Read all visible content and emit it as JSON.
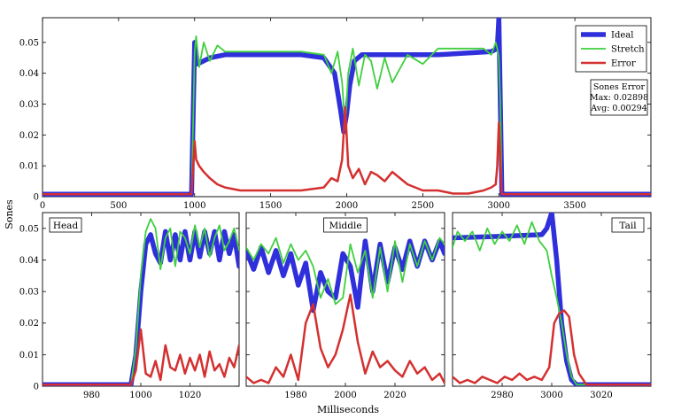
{
  "figure": {
    "ylabel": "Sones",
    "xlabel": "Milliseconds"
  },
  "colors": {
    "ideal": "#2f2fdc",
    "stretch": "#3fcf3f",
    "error": "#d43030"
  },
  "chart_data": [
    {
      "id": "overview",
      "type": "line",
      "xlim": [
        0,
        4000
      ],
      "ylim": [
        0,
        0.058
      ],
      "x_ticks": [
        0,
        500,
        1000,
        1500,
        2000,
        2500,
        3000,
        3500
      ],
      "y_ticks": [
        0,
        0.01,
        0.02,
        0.03,
        0.04,
        0.05
      ],
      "x_tick_labels": [
        "0",
        "500",
        "1000",
        "1500",
        "2000",
        "2500",
        "3000",
        "3500"
      ],
      "y_tick_labels": [
        "0",
        "0.01",
        "0.02",
        "0.03",
        "0.04",
        "0.05"
      ],
      "legend": {
        "position": "top-right",
        "items": [
          "Ideal",
          "Stretch",
          "Error"
        ]
      },
      "annotation": [
        "Sones Error",
        "Max: 0.02898",
        "Avg: 0.00294"
      ],
      "series": [
        {
          "name": "Ideal",
          "x": [
            0,
            980,
            1000,
            1020,
            1100,
            1200,
            1300,
            1500,
            1700,
            1850,
            1920,
            1960,
            1980,
            2000,
            2020,
            2050,
            2100,
            2300,
            2600,
            2950,
            2990,
            3000,
            3010,
            3020,
            3040,
            4000
          ],
          "y": [
            0.0008,
            0.0008,
            0.05,
            0.043,
            0.045,
            0.046,
            0.046,
            0.046,
            0.046,
            0.045,
            0.04,
            0.028,
            0.021,
            0.027,
            0.036,
            0.044,
            0.046,
            0.046,
            0.046,
            0.047,
            0.048,
            0.058,
            0.03,
            0.0008,
            0.0008,
            0.0008
          ]
        },
        {
          "name": "Stretch",
          "x": [
            0,
            980,
            1000,
            1010,
            1030,
            1060,
            1100,
            1150,
            1200,
            1300,
            1500,
            1700,
            1850,
            1900,
            1940,
            1970,
            1990,
            2010,
            2040,
            2080,
            2120,
            2160,
            2200,
            2250,
            2300,
            2400,
            2500,
            2600,
            2700,
            2800,
            2900,
            2950,
            2980,
            2990,
            3000,
            3010,
            3020,
            4000
          ],
          "y": [
            0.0008,
            0.0008,
            0.047,
            0.052,
            0.042,
            0.05,
            0.044,
            0.049,
            0.047,
            0.047,
            0.047,
            0.047,
            0.046,
            0.04,
            0.047,
            0.037,
            0.022,
            0.04,
            0.048,
            0.036,
            0.046,
            0.044,
            0.035,
            0.045,
            0.037,
            0.046,
            0.043,
            0.048,
            0.048,
            0.048,
            0.048,
            0.046,
            0.05,
            0.048,
            0.045,
            0.03,
            0.0008,
            0.0008
          ]
        },
        {
          "name": "Error",
          "x": [
            0,
            980,
            1000,
            1010,
            1030,
            1060,
            1100,
            1150,
            1200,
            1300,
            1500,
            1700,
            1850,
            1900,
            1940,
            1970,
            1990,
            2010,
            2040,
            2080,
            2120,
            2160,
            2200,
            2250,
            2300,
            2400,
            2500,
            2600,
            2700,
            2800,
            2900,
            2950,
            2980,
            2990,
            3000,
            3010,
            3020,
            4000
          ],
          "y": [
            0.0008,
            0.0008,
            0.018,
            0.012,
            0.01,
            0.008,
            0.006,
            0.004,
            0.003,
            0.002,
            0.002,
            0.002,
            0.003,
            0.006,
            0.005,
            0.012,
            0.029,
            0.01,
            0.006,
            0.009,
            0.004,
            0.008,
            0.007,
            0.005,
            0.008,
            0.004,
            0.002,
            0.002,
            0.001,
            0.001,
            0.002,
            0.003,
            0.004,
            0.01,
            0.024,
            0.012,
            0.0008,
            0.0008
          ]
        }
      ]
    },
    {
      "id": "head",
      "type": "line",
      "label": "Head",
      "xlim": [
        960,
        1040
      ],
      "ylim": [
        0,
        0.055
      ],
      "x_ticks": [
        980,
        1000,
        1020
      ],
      "y_ticks": [
        0,
        0.01,
        0.02,
        0.03,
        0.04,
        0.05
      ],
      "x_tick_labels": [
        "980",
        "1000",
        "1020"
      ],
      "y_tick_labels": [
        "0",
        "0.01",
        "0.02",
        "0.03",
        "0.04",
        "0.05"
      ],
      "series": [
        {
          "name": "Ideal",
          "x": [
            960,
            996,
            998,
            1000,
            1002,
            1004,
            1006,
            1008,
            1010,
            1012,
            1014,
            1016,
            1018,
            1020,
            1022,
            1024,
            1026,
            1028,
            1030,
            1032,
            1034,
            1036,
            1038,
            1040
          ],
          "y": [
            0.0005,
            0.0005,
            0.01,
            0.03,
            0.045,
            0.048,
            0.042,
            0.039,
            0.049,
            0.04,
            0.048,
            0.04,
            0.049,
            0.04,
            0.049,
            0.041,
            0.049,
            0.042,
            0.049,
            0.04,
            0.049,
            0.042,
            0.048,
            0.038
          ]
        },
        {
          "name": "Stretch",
          "x": [
            960,
            996,
            998,
            1000,
            1002,
            1004,
            1006,
            1008,
            1010,
            1012,
            1014,
            1016,
            1018,
            1020,
            1022,
            1024,
            1026,
            1028,
            1030,
            1032,
            1034,
            1036,
            1038,
            1040
          ],
          "y": [
            0.0005,
            0.0005,
            0.012,
            0.035,
            0.049,
            0.053,
            0.05,
            0.037,
            0.047,
            0.05,
            0.038,
            0.049,
            0.047,
            0.042,
            0.051,
            0.044,
            0.05,
            0.041,
            0.047,
            0.051,
            0.043,
            0.046,
            0.05,
            0.043
          ]
        },
        {
          "name": "Error",
          "x": [
            960,
            996,
            998,
            1000,
            1002,
            1004,
            1006,
            1008,
            1010,
            1012,
            1014,
            1016,
            1018,
            1020,
            1022,
            1024,
            1026,
            1028,
            1030,
            1032,
            1034,
            1036,
            1038,
            1040
          ],
          "y": [
            0.0005,
            0.0005,
            0.005,
            0.018,
            0.004,
            0.003,
            0.008,
            0.002,
            0.013,
            0.006,
            0.005,
            0.01,
            0.004,
            0.009,
            0.005,
            0.01,
            0.003,
            0.011,
            0.005,
            0.007,
            0.003,
            0.009,
            0.006,
            0.013
          ]
        }
      ]
    },
    {
      "id": "middle",
      "type": "line",
      "label": "Middle",
      "xlim": [
        1960,
        2040
      ],
      "ylim": [
        0,
        0.055
      ],
      "x_ticks": [
        1980,
        2000,
        2020
      ],
      "y_ticks": [
        0,
        0.01,
        0.02,
        0.03,
        0.04,
        0.05
      ],
      "x_tick_labels": [
        "1980",
        "2000",
        "2020"
      ],
      "y_tick_labels": [],
      "series": [
        {
          "name": "Ideal",
          "x": [
            1960,
            1963,
            1966,
            1969,
            1972,
            1975,
            1978,
            1981,
            1984,
            1987,
            1990,
            1993,
            1996,
            1999,
            2002,
            2005,
            2008,
            2011,
            2014,
            2017,
            2020,
            2023,
            2026,
            2029,
            2032,
            2035,
            2038,
            2040
          ],
          "y": [
            0.043,
            0.037,
            0.044,
            0.036,
            0.043,
            0.035,
            0.042,
            0.032,
            0.039,
            0.024,
            0.036,
            0.03,
            0.028,
            0.042,
            0.038,
            0.025,
            0.046,
            0.03,
            0.045,
            0.033,
            0.044,
            0.037,
            0.046,
            0.038,
            0.046,
            0.04,
            0.046,
            0.042
          ]
        },
        {
          "name": "Stretch",
          "x": [
            1960,
            1963,
            1966,
            1969,
            1972,
            1975,
            1978,
            1981,
            1984,
            1987,
            1990,
            1993,
            1996,
            1999,
            2002,
            2005,
            2008,
            2011,
            2014,
            2017,
            2020,
            2023,
            2026,
            2029,
            2032,
            2035,
            2038,
            2040
          ],
          "y": [
            0.044,
            0.04,
            0.045,
            0.042,
            0.047,
            0.039,
            0.045,
            0.04,
            0.043,
            0.038,
            0.028,
            0.034,
            0.026,
            0.028,
            0.045,
            0.036,
            0.043,
            0.028,
            0.044,
            0.03,
            0.046,
            0.033,
            0.045,
            0.038,
            0.046,
            0.04,
            0.047,
            0.045
          ]
        },
        {
          "name": "Error",
          "x": [
            1960,
            1963,
            1966,
            1969,
            1972,
            1975,
            1978,
            1981,
            1984,
            1987,
            1990,
            1993,
            1996,
            1999,
            2002,
            2005,
            2008,
            2011,
            2014,
            2017,
            2020,
            2023,
            2026,
            2029,
            2032,
            2035,
            2038,
            2040
          ],
          "y": [
            0.003,
            0.001,
            0.002,
            0.001,
            0.006,
            0.003,
            0.01,
            0.002,
            0.02,
            0.026,
            0.012,
            0.006,
            0.01,
            0.018,
            0.029,
            0.014,
            0.004,
            0.011,
            0.006,
            0.008,
            0.005,
            0.003,
            0.008,
            0.004,
            0.006,
            0.002,
            0.004,
            0.001
          ]
        }
      ]
    },
    {
      "id": "tail",
      "type": "line",
      "label": "Tail",
      "xlim": [
        2960,
        3040
      ],
      "ylim": [
        0,
        0.055
      ],
      "x_ticks": [
        2980,
        3000,
        3020
      ],
      "y_ticks": [
        0,
        0.01,
        0.02,
        0.03,
        0.04,
        0.05
      ],
      "x_tick_labels": [
        "2980",
        "3000",
        "3020"
      ],
      "y_tick_labels": [],
      "series": [
        {
          "name": "Ideal",
          "x": [
            2960,
            2980,
            2996,
            2998,
            3000,
            3002,
            3004,
            3006,
            3008,
            3010,
            3040
          ],
          "y": [
            0.047,
            0.0475,
            0.048,
            0.05,
            0.055,
            0.04,
            0.02,
            0.008,
            0.002,
            0.0005,
            0.0005
          ]
        },
        {
          "name": "Stretch",
          "x": [
            2960,
            2962,
            2965,
            2968,
            2971,
            2974,
            2977,
            2980,
            2983,
            2986,
            2989,
            2992,
            2995,
            2998,
            3000,
            3002,
            3004,
            3006,
            3008,
            3010,
            3040
          ],
          "y": [
            0.044,
            0.049,
            0.046,
            0.049,
            0.043,
            0.05,
            0.045,
            0.049,
            0.046,
            0.051,
            0.045,
            0.052,
            0.046,
            0.043,
            0.035,
            0.028,
            0.02,
            0.01,
            0.003,
            0.0005,
            0.0005
          ]
        },
        {
          "name": "Error",
          "x": [
            2960,
            2963,
            2966,
            2969,
            2972,
            2975,
            2978,
            2981,
            2984,
            2987,
            2990,
            2993,
            2996,
            2999,
            3001,
            3003,
            3005,
            3007,
            3009,
            3011,
            3014,
            3040
          ],
          "y": [
            0.003,
            0.001,
            0.002,
            0.001,
            0.003,
            0.002,
            0.001,
            0.003,
            0.002,
            0.004,
            0.002,
            0.003,
            0.002,
            0.006,
            0.02,
            0.023,
            0.024,
            0.022,
            0.01,
            0.004,
            0.0005,
            0.0005
          ]
        }
      ]
    }
  ]
}
